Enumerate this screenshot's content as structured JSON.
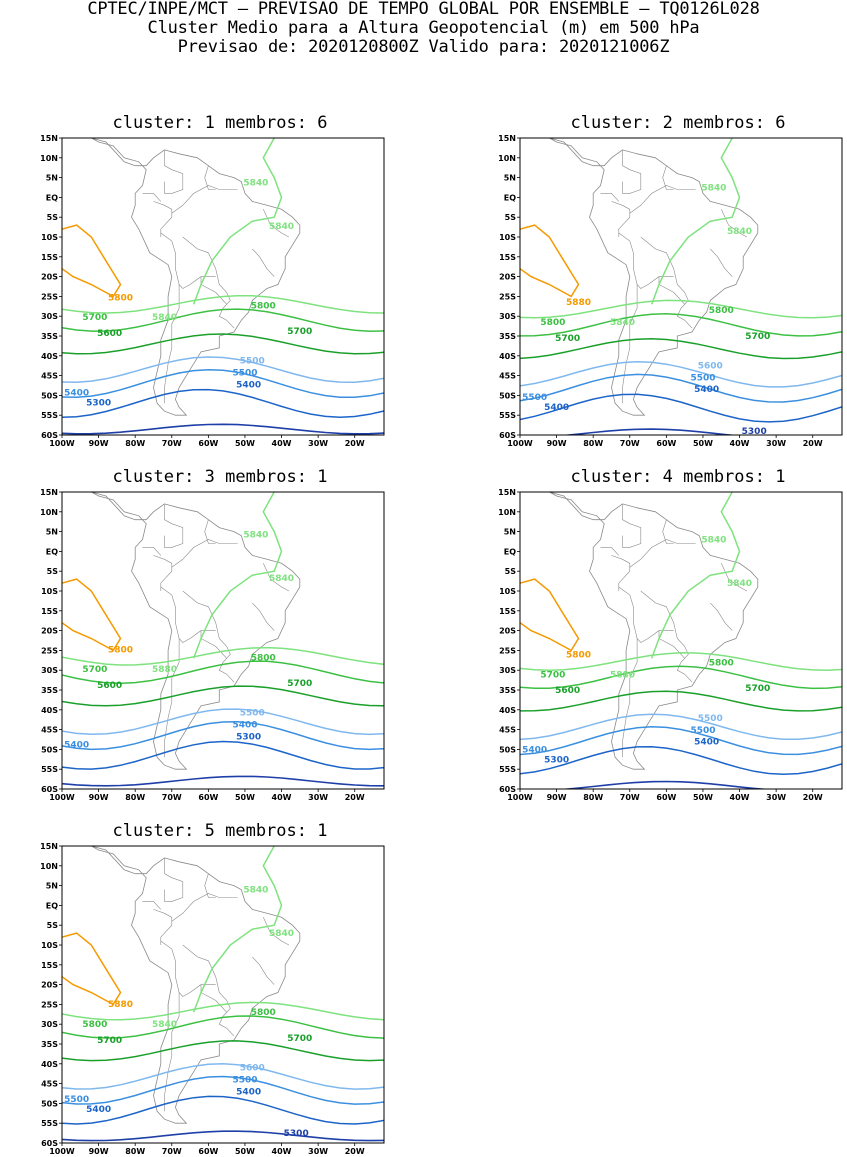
{
  "header": {
    "line1": "CPTEC/INPE/MCT – PREVISAO DE TEMPO GLOBAL POR ENSEMBLE – TQ0126L028",
    "line2": "Cluster Medio para a Altura Geopotencial (m) em 500 hPa",
    "line3": "Previsao de: 2020120800Z    Valido para: 2020121006Z"
  },
  "axes": {
    "lat_labels": [
      "15N",
      "10N",
      "5N",
      "EQ",
      "5S",
      "10S",
      "15S",
      "20S",
      "25S",
      "30S",
      "35S",
      "40S",
      "45S",
      "50S",
      "55S",
      "60S"
    ],
    "lon_labels": [
      "100W",
      "90W",
      "80W",
      "70W",
      "60W",
      "50W",
      "40W",
      "30W",
      "20W"
    ]
  },
  "colors": {
    "c5300": "#1f3fa8",
    "c5400": "#1c64c8",
    "c5500": "#3a8fe0",
    "c5600": "#7fb8ee",
    "c5700": "#1aa02a",
    "c5800": "#3cc043",
    "c5840": "#7ee27e",
    "c5880": "#f59a00",
    "border": "#8a8a8a"
  },
  "clusters": [
    {
      "title": "cluster: 1   membros: 6",
      "labels": [
        "5840",
        "5840",
        "5840",
        "5800",
        "5800",
        "5700",
        "5700",
        "5600",
        "5500",
        "5500",
        "5400",
        "5400",
        "5300"
      ]
    },
    {
      "title": "cluster: 2   membros: 6",
      "labels": [
        "5840",
        "5840",
        "5840",
        "5880",
        "5800",
        "5800",
        "5700",
        "5700",
        "5600",
        "5500",
        "5500",
        "5400",
        "5400",
        "5300"
      ]
    },
    {
      "title": "cluster: 3   membros: 1",
      "labels": [
        "5840",
        "5840",
        "5880",
        "5800",
        "5800",
        "5700",
        "5700",
        "5600",
        "5500",
        "5400",
        "5400",
        "5300"
      ]
    },
    {
      "title": "cluster: 4   membros: 1",
      "labels": [
        "5840",
        "5840",
        "5880",
        "5800",
        "5800",
        "5700",
        "5700",
        "5600",
        "5500",
        "5500",
        "5400",
        "5400",
        "5300"
      ]
    },
    {
      "title": "cluster: 5   membros: 1",
      "labels": [
        "5840",
        "5840",
        "5840",
        "5880",
        "5800",
        "5800",
        "5700",
        "5700",
        "5600",
        "5500",
        "5500",
        "5400",
        "5400",
        "5300"
      ]
    }
  ]
}
